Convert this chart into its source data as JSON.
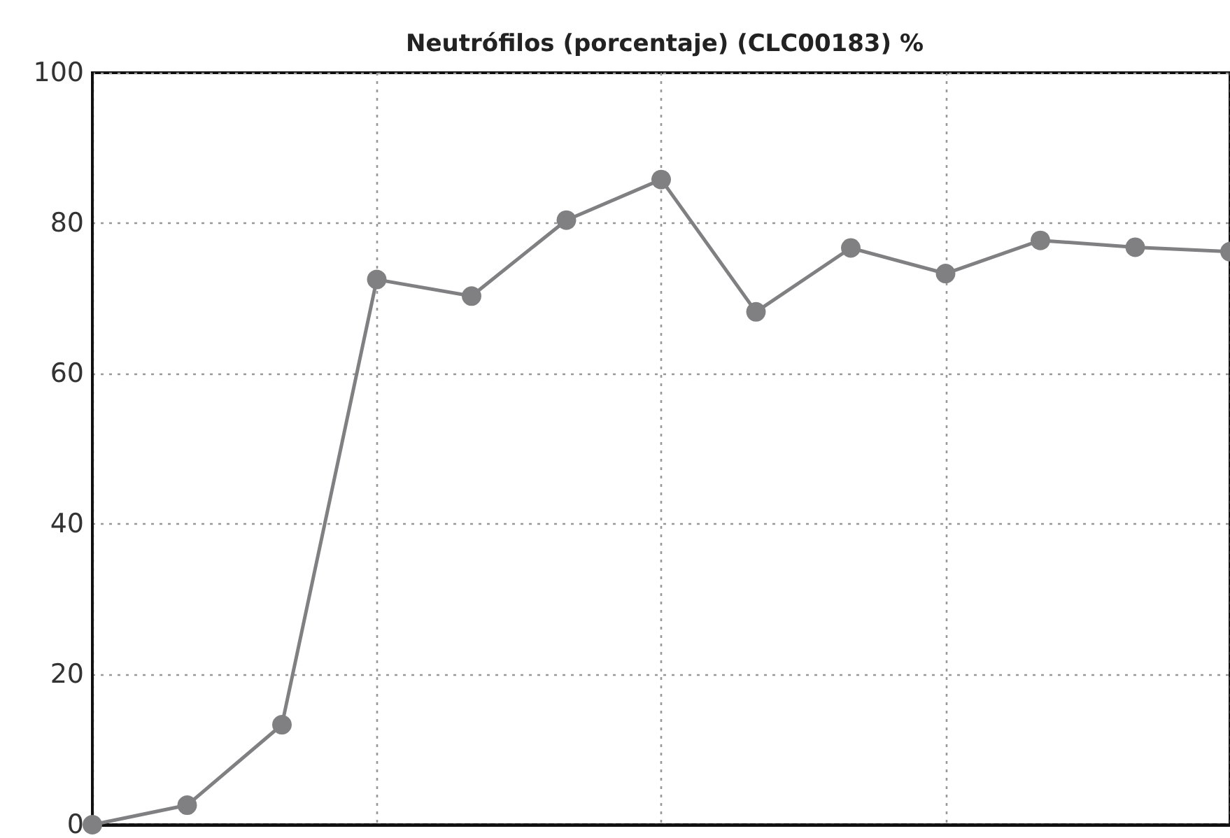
{
  "chart_data": {
    "type": "line",
    "title": "Neutrófilos (porcentaje) (CLC00183) %",
    "categories": [
      null,
      null,
      null,
      null,
      null,
      null,
      null,
      null,
      null,
      null,
      null,
      null,
      null
    ],
    "series": [
      {
        "color": "#808083",
        "values": [
          0,
          2.6,
          13.3,
          72.5,
          70.3,
          80.4,
          85.8,
          68.2,
          76.7,
          73.3,
          77.7,
          76.8,
          76.2
        ]
      }
    ],
    "ylim": [
      0,
      100
    ],
    "yticks": [
      0,
      20,
      40,
      60,
      80,
      100
    ],
    "tick_labels": "y",
    "grid": true,
    "marker": "circle",
    "line_style": "solid"
  }
}
